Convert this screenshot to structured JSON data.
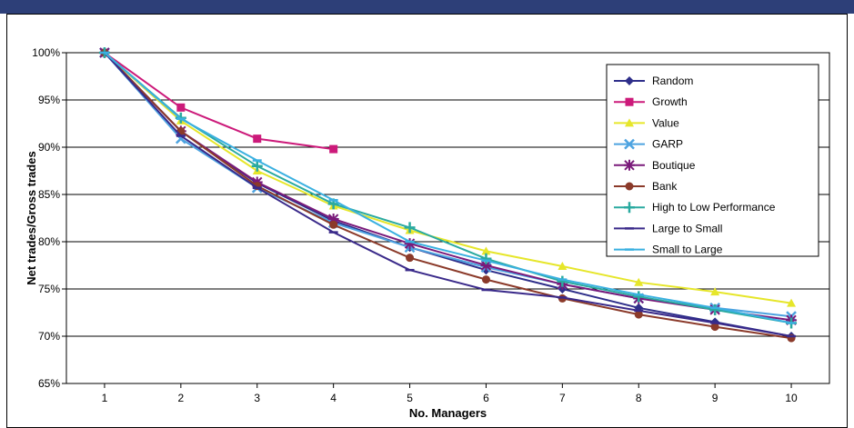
{
  "chart_data": {
    "type": "line",
    "xlabel": "No. Managers",
    "ylabel": "Net trades/Gross trades",
    "x": [
      1,
      2,
      3,
      4,
      5,
      6,
      7,
      8,
      9,
      10
    ],
    "xlim": [
      0.5,
      10.5
    ],
    "ylim": [
      65,
      100
    ],
    "yticks": [
      "65%",
      "70%",
      "75%",
      "80%",
      "85%",
      "90%",
      "95%",
      "100%"
    ],
    "ytick_values": [
      65,
      70,
      75,
      80,
      85,
      90,
      95,
      100
    ],
    "xticks": [
      "1",
      "2",
      "3",
      "4",
      "5",
      "6",
      "7",
      "8",
      "9",
      "10"
    ],
    "grid": "horizontal",
    "legend_position": "right",
    "series": [
      {
        "name": "Random",
        "color": "#2e2e8a",
        "marker": "diamond",
        "values": [
          100,
          91.7,
          86.2,
          82.2,
          79.4,
          77.0,
          75.0,
          73.0,
          71.5,
          70.0
        ]
      },
      {
        "name": "Growth",
        "color": "#cc1a7a",
        "marker": "square",
        "values": [
          100,
          94.2,
          90.9,
          89.8,
          null,
          null,
          null,
          null,
          null,
          null
        ]
      },
      {
        "name": "Value",
        "color": "#e6e62a",
        "marker": "triangle",
        "values": [
          100,
          92.8,
          87.5,
          83.8,
          81.2,
          79.0,
          77.4,
          75.7,
          74.7,
          73.5
        ]
      },
      {
        "name": "GARP",
        "color": "#4da3e0",
        "marker": "x",
        "values": [
          100,
          90.9,
          85.7,
          82.0,
          79.4,
          77.3,
          75.5,
          74.0,
          73.0,
          72.1
        ]
      },
      {
        "name": "Boutique",
        "color": "#7a1a7a",
        "marker": "asterisk",
        "values": [
          100,
          91.7,
          86.3,
          82.4,
          79.8,
          77.5,
          75.5,
          74.0,
          72.8,
          71.7
        ]
      },
      {
        "name": "Bank",
        "color": "#8b3a2a",
        "marker": "circle",
        "values": [
          100,
          91.7,
          85.9,
          81.8,
          78.3,
          76.0,
          74.0,
          72.3,
          71.0,
          69.8
        ]
      },
      {
        "name": "High to Low Performance",
        "color": "#2aaaa0",
        "marker": "plus",
        "values": [
          100,
          93.1,
          88.0,
          84.0,
          81.5,
          78.2,
          75.8,
          74.2,
          72.8,
          71.4
        ]
      },
      {
        "name": "Large to Small",
        "color": "#3a2a8a",
        "marker": "dash",
        "values": [
          100,
          91.2,
          85.7,
          81.0,
          77.0,
          74.9,
          74.1,
          72.7,
          71.4,
          70.0
        ]
      },
      {
        "name": "Small to Large",
        "color": "#3ab0e0",
        "marker": "dash",
        "values": [
          100,
          93.0,
          88.6,
          84.4,
          80.0,
          78.0,
          76.0,
          74.4,
          73.0,
          71.4
        ]
      }
    ]
  }
}
